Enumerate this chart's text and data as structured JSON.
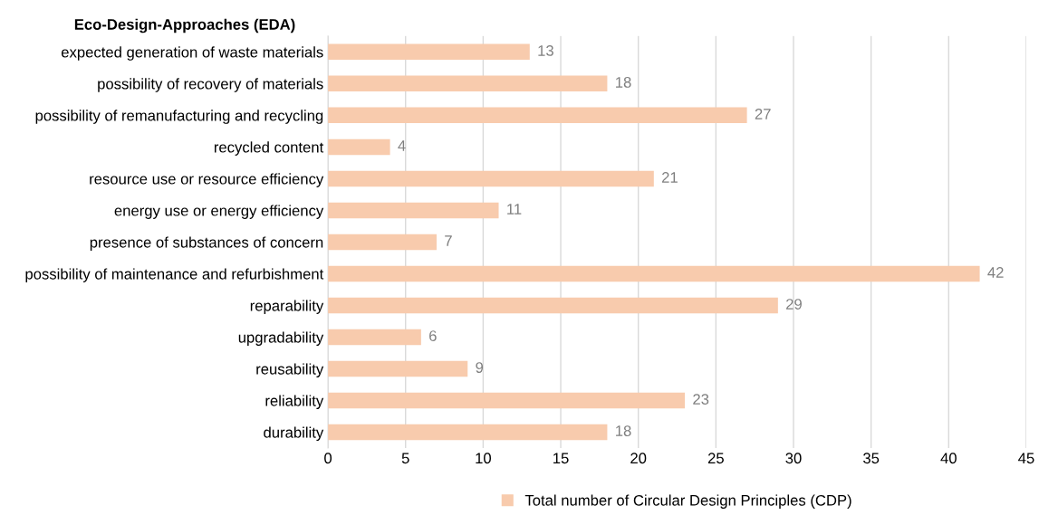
{
  "chart_data": {
    "type": "bar",
    "orientation": "horizontal",
    "title": "Eco-Design-Approaches (EDA)",
    "categories": [
      "expected generation of waste materials",
      "possibility of recovery of materials",
      "possibility of remanufacturing and recycling",
      "recycled content",
      "resource use or resource efficiency",
      "energy use or energy efficiency",
      "presence of substances of concern",
      "possibility of maintenance and refurbishment",
      "reparability",
      "upgradability",
      "reusability",
      "reliability",
      "durability"
    ],
    "series": [
      {
        "name": "Total number of Circular Design Principles (CDP)",
        "color": "#f8cbad",
        "values": [
          13,
          18,
          27,
          4,
          21,
          11,
          7,
          42,
          29,
          6,
          9,
          23,
          18
        ]
      }
    ],
    "xlim": [
      0,
      45
    ],
    "xticks": [
      0,
      5,
      10,
      15,
      20,
      25,
      30,
      35,
      40,
      45
    ],
    "grid": "x",
    "legend": "bottom",
    "data_labels": true
  }
}
